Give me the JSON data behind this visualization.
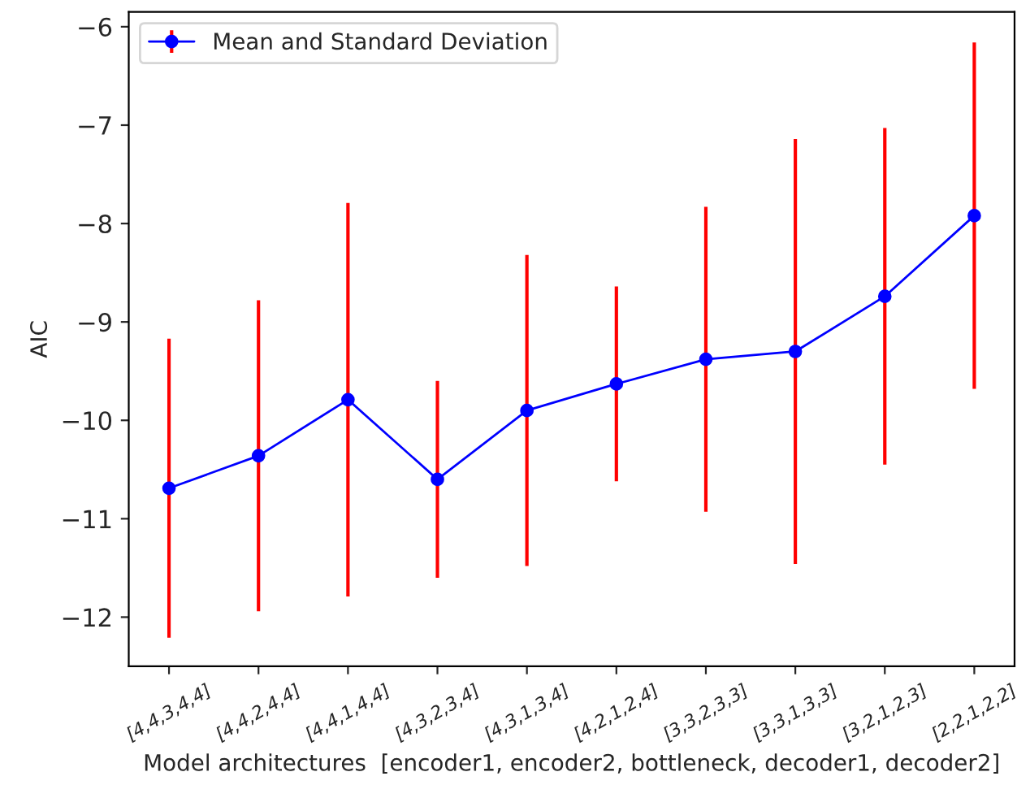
{
  "chart_data": {
    "type": "line",
    "xlabel": "Model architectures  [encoder1, encoder2, bottleneck, decoder1, decoder2]",
    "ylabel": "AIC",
    "categories": [
      "[4,4,3,4,4]",
      "[4,4,2,4,4]",
      "[4,4,1,4,4]",
      "[4,3,2,3,4]",
      "[4,3,1,3,4]",
      "[4,2,1,2,4]",
      "[3,3,2,3,3]",
      "[3,3,1,3,3]",
      "[3,2,1,2,3]",
      "[2,2,1,2,2]"
    ],
    "series": [
      {
        "name": "Mean and Standard Deviation",
        "color": "#0000ff",
        "values": [
          -10.69,
          -10.36,
          -9.79,
          -10.6,
          -9.9,
          -9.63,
          -9.38,
          -9.3,
          -8.74,
          -7.92
        ],
        "errors": [
          1.52,
          1.58,
          2.0,
          1.0,
          1.58,
          0.99,
          1.55,
          2.16,
          1.71,
          1.76
        ]
      }
    ],
    "ylim": [
      -12.5,
      -5.85
    ],
    "yticks": [
      {
        "value": -12,
        "label": "−12"
      },
      {
        "value": -11,
        "label": "−11"
      },
      {
        "value": -10,
        "label": "−10"
      },
      {
        "value": -9,
        "label": "−9"
      },
      {
        "value": -8,
        "label": "−8"
      },
      {
        "value": -7,
        "label": "−7"
      },
      {
        "value": -6,
        "label": "−6"
      }
    ],
    "marker": "circle",
    "line_style": "solid",
    "legend": "top left",
    "grid": false
  }
}
